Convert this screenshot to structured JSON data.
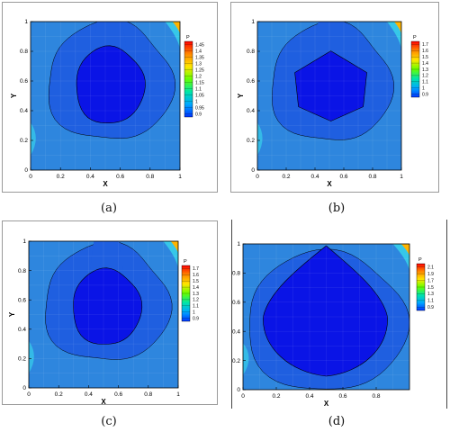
{
  "chart_data": [
    {
      "type": "contour",
      "caption": "(a)",
      "xlabel": "X",
      "ylabel": "Y",
      "xlim": [
        0,
        1
      ],
      "ylim": [
        0,
        1
      ],
      "xticks": [
        "0",
        "0.2",
        "0.4",
        "0.6",
        "0.8",
        "1"
      ],
      "yticks": [
        "0",
        "0.2",
        "0.4",
        "0.6",
        "0.8",
        "1"
      ],
      "legend_title": "P",
      "legend_position": "right",
      "levels": [
        "1.45",
        "1.4",
        "1.35",
        "1.3",
        "1.25",
        "1.2",
        "1.15",
        "1.1",
        "1.05",
        "1",
        "0.95",
        "0.9"
      ]
    },
    {
      "type": "contour",
      "caption": "(b)",
      "xlabel": "X",
      "ylabel": "Y",
      "xlim": [
        0,
        1
      ],
      "ylim": [
        0,
        1
      ],
      "xticks": [
        "0",
        "0.2",
        "0.4",
        "0.6",
        "0.8",
        "1"
      ],
      "yticks": [
        "0",
        "0.2",
        "0.4",
        "0.6",
        "0.8",
        "1"
      ],
      "legend_title": "P",
      "legend_position": "right",
      "levels": [
        "1.7",
        "1.6",
        "1.5",
        "1.4",
        "1.3",
        "1.2",
        "1.1",
        "1",
        "0.9"
      ]
    },
    {
      "type": "contour",
      "caption": "(c)",
      "xlabel": "X",
      "ylabel": "Y",
      "xlim": [
        0,
        1
      ],
      "ylim": [
        0,
        1
      ],
      "xticks": [
        "0",
        "0.2",
        "0.4",
        "0.6",
        "0.8",
        "1"
      ],
      "yticks": [
        "0",
        "0.2",
        "0.4",
        "0.6",
        "0.8",
        "1"
      ],
      "legend_title": "P",
      "legend_position": "right",
      "levels": [
        "1.7",
        "1.6",
        "1.5",
        "1.4",
        "1.3",
        "1.2",
        "1.1",
        "1",
        "0.9"
      ]
    },
    {
      "type": "contour",
      "caption": "(d)",
      "xlabel": "X",
      "ylabel": "Y",
      "xlim": [
        0,
        1
      ],
      "ylim": [
        0,
        1
      ],
      "xticks": [
        "0",
        "0.2",
        "0.4",
        "0.6",
        "0.8"
      ],
      "yticks": [
        "0",
        "0.2",
        "0.4",
        "0.6",
        "0.8",
        "1"
      ],
      "legend_title": "P",
      "legend_position": "right",
      "levels": [
        "2.1",
        "1.9",
        "1.7",
        "1.5",
        "1.3",
        "1.1",
        "0.9"
      ]
    }
  ],
  "colors": {
    "background_field": "#2e86de",
    "outer_band": "#1f5fe0",
    "inner_band": "#0d2ff0",
    "low_region": "#0a14e6",
    "rim": "#36c7e8",
    "legend_gradient": [
      "#ff0000",
      "#ff8800",
      "#ffe600",
      "#66ff00",
      "#00e5a8",
      "#00a8ff",
      "#0033ff"
    ]
  }
}
